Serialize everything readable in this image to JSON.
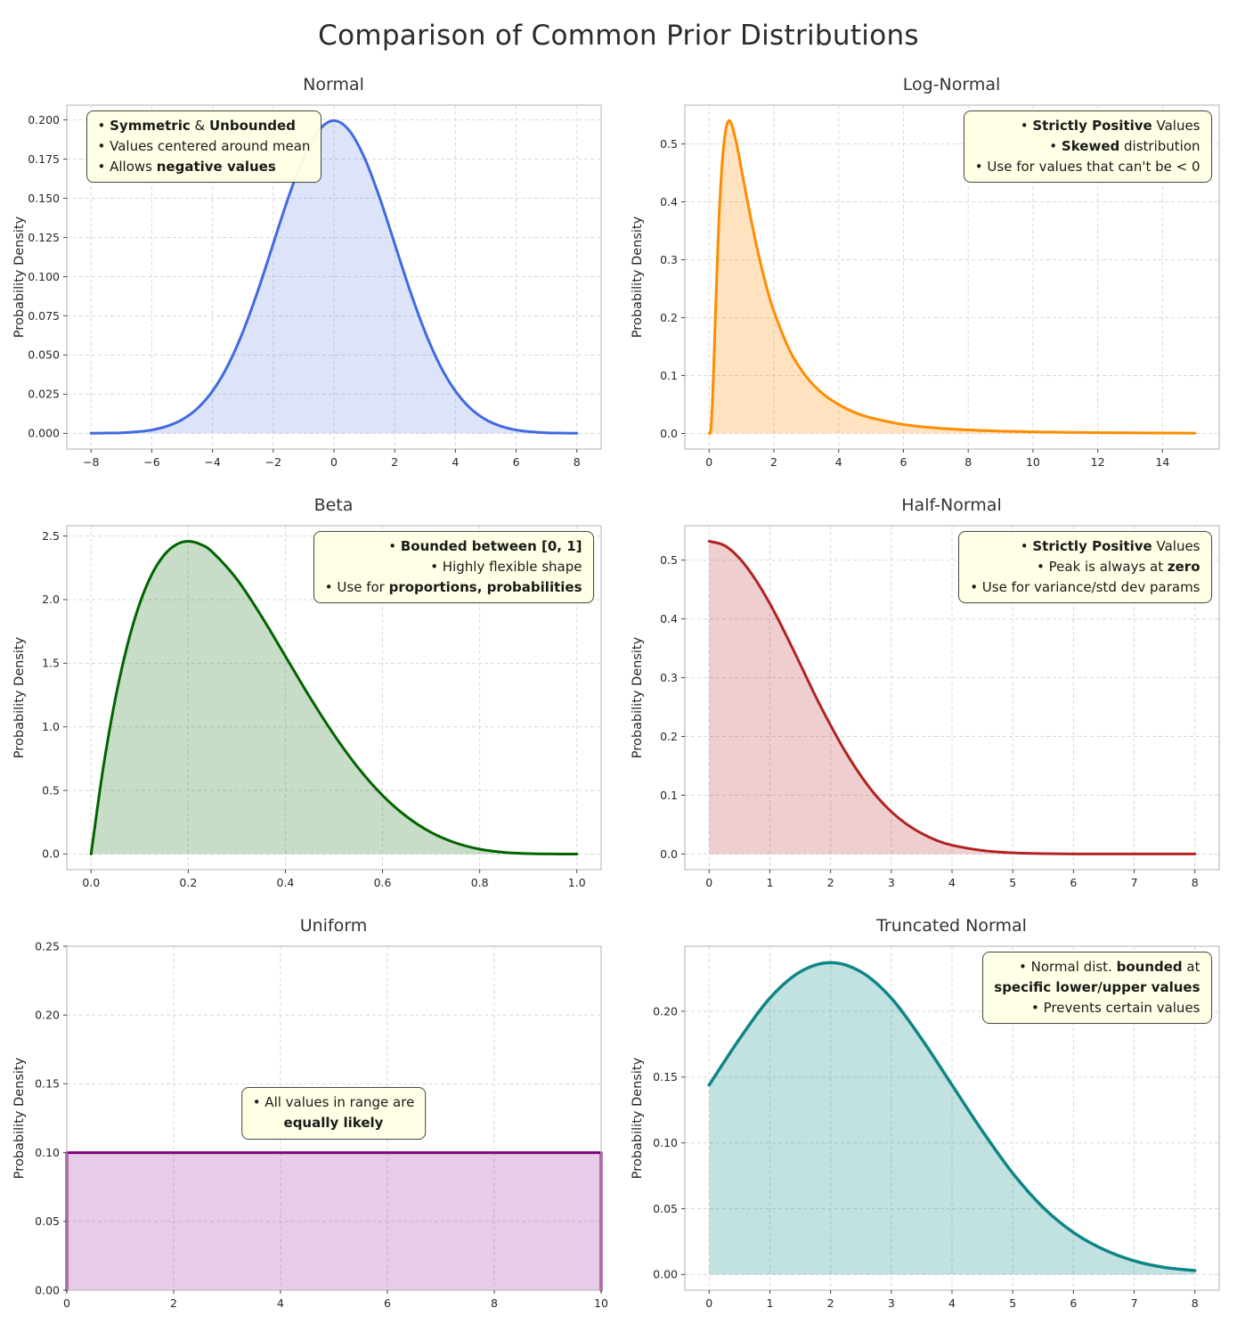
{
  "figure": {
    "title": "Comparison of Common Prior Distributions"
  },
  "chart_data": [
    {
      "type": "area",
      "title": "Normal",
      "ylabel": "Probability Density",
      "color": "#4169e1",
      "fill_opacity": 0.18,
      "lw": 3,
      "smooth": true,
      "xlim": [
        -8.8,
        8.8
      ],
      "ylim": [
        -0.01,
        0.2094
      ],
      "xticks": {
        "values": [
          -8,
          -6,
          -4,
          -2,
          0,
          2,
          4,
          6,
          8
        ],
        "labels": [
          "−8",
          "−6",
          "−4",
          "−2",
          "0",
          "2",
          "4",
          "6",
          "8"
        ]
      },
      "yticks": {
        "values": [
          0,
          0.025,
          0.05,
          0.075,
          0.1,
          0.125,
          0.15,
          0.175,
          0.2
        ],
        "labels": [
          "0.000",
          "0.025",
          "0.050",
          "0.075",
          "0.100",
          "0.125",
          "0.150",
          "0.175",
          "0.200"
        ]
      },
      "points": [
        [
          -8,
          0.0001
        ],
        [
          -7.5,
          0.0002
        ],
        [
          -7,
          0.0004
        ],
        [
          -6.5,
          0.001
        ],
        [
          -6,
          0.0022
        ],
        [
          -5.5,
          0.0046
        ],
        [
          -5,
          0.0088
        ],
        [
          -4.5,
          0.0159
        ],
        [
          -4,
          0.027
        ],
        [
          -3.5,
          0.0431
        ],
        [
          -3,
          0.0648
        ],
        [
          -2.5,
          0.0913
        ],
        [
          -2,
          0.121
        ],
        [
          -1.5,
          0.1506
        ],
        [
          -1,
          0.176
        ],
        [
          -0.5,
          0.1933
        ],
        [
          0,
          0.1995
        ],
        [
          0.5,
          0.1933
        ],
        [
          1,
          0.176
        ],
        [
          1.5,
          0.1506
        ],
        [
          2,
          0.121
        ],
        [
          2.5,
          0.0913
        ],
        [
          3,
          0.0648
        ],
        [
          3.5,
          0.0431
        ],
        [
          4,
          0.027
        ],
        [
          4.5,
          0.0159
        ],
        [
          5,
          0.0088
        ],
        [
          5.5,
          0.0046
        ],
        [
          6,
          0.0022
        ],
        [
          6.5,
          0.001
        ],
        [
          7,
          0.0004
        ],
        [
          7.5,
          0.0002
        ],
        [
          8,
          0.0001
        ]
      ],
      "annotation": {
        "anchor": "top-left",
        "align": "left",
        "lines": [
          [
            [
              "• ",
              0
            ],
            [
              "Symmetric",
              1
            ],
            [
              " & ",
              0
            ],
            [
              "Unbounded",
              1
            ]
          ],
          [
            [
              "• Values centered around mean",
              0
            ]
          ],
          [
            [
              "• Allows ",
              0
            ],
            [
              "negative values",
              1
            ]
          ]
        ]
      }
    },
    {
      "type": "area",
      "title": "Log-Normal",
      "ylabel": "Probability Density",
      "color": "#ff8c00",
      "fill_opacity": 0.25,
      "lw": 3,
      "smooth": true,
      "xlim": [
        -0.75,
        15.75
      ],
      "ylim": [
        -0.027,
        0.567
      ],
      "xticks": {
        "values": [
          0,
          2,
          4,
          6,
          8,
          10,
          12,
          14
        ],
        "labels": [
          "0",
          "2",
          "4",
          "6",
          "8",
          "10",
          "12",
          "14"
        ]
      },
      "yticks": {
        "values": [
          0,
          0.1,
          0.2,
          0.3,
          0.4,
          0.5
        ],
        "labels": [
          "0.0",
          "0.1",
          "0.2",
          "0.3",
          "0.4",
          "0.5"
        ]
      },
      "points": [
        [
          0,
          0
        ],
        [
          0.05,
          0.006
        ],
        [
          0.1,
          0.052
        ],
        [
          0.15,
          0.129
        ],
        [
          0.2,
          0.215
        ],
        [
          0.3,
          0.365
        ],
        [
          0.4,
          0.465
        ],
        [
          0.5,
          0.52
        ],
        [
          0.6,
          0.54
        ],
        [
          0.7,
          0.533
        ],
        [
          0.8,
          0.512
        ],
        [
          0.9,
          0.486
        ],
        [
          1,
          0.455
        ],
        [
          1.25,
          0.382
        ],
        [
          1.5,
          0.315
        ],
        [
          1.75,
          0.258
        ],
        [
          2,
          0.211
        ],
        [
          2.5,
          0.142
        ],
        [
          3,
          0.098
        ],
        [
          3.5,
          0.069
        ],
        [
          4,
          0.05
        ],
        [
          4.5,
          0.036
        ],
        [
          5,
          0.027
        ],
        [
          6,
          0.0155
        ],
        [
          7,
          0.0095
        ],
        [
          8,
          0.006
        ],
        [
          9,
          0.004
        ],
        [
          10,
          0.0027
        ],
        [
          11,
          0.0019
        ],
        [
          12,
          0.0013
        ],
        [
          13,
          0.001
        ],
        [
          14,
          0.0007
        ],
        [
          15,
          0.0005
        ]
      ],
      "annotation": {
        "anchor": "top-right",
        "align": "right",
        "lines": [
          [
            [
              "• ",
              0
            ],
            [
              "Strictly Positive",
              1
            ],
            [
              " Values",
              0
            ]
          ],
          [
            [
              "• ",
              0
            ],
            [
              "Skewed",
              1
            ],
            [
              " distribution",
              0
            ]
          ],
          [
            [
              "• Use for values that can't be < 0",
              0
            ]
          ]
        ]
      }
    },
    {
      "type": "area",
      "title": "Beta",
      "ylabel": "Probability Density",
      "color": "#006400",
      "fill_opacity": 0.22,
      "lw": 3,
      "smooth": true,
      "xlim": [
        -0.05,
        1.05
      ],
      "ylim": [
        -0.123,
        2.581
      ],
      "xticks": {
        "values": [
          0,
          0.2,
          0.4,
          0.6,
          0.8,
          1
        ],
        "labels": [
          "0.0",
          "0.2",
          "0.4",
          "0.6",
          "0.8",
          "1.0"
        ]
      },
      "yticks": {
        "values": [
          0,
          0.5,
          1,
          1.5,
          2,
          2.5
        ],
        "labels": [
          "0.0",
          "0.5",
          "1.0",
          "1.5",
          "2.0",
          "2.5"
        ]
      },
      "points": [
        [
          0,
          0
        ],
        [
          0.025,
          0.678
        ],
        [
          0.05,
          1.222
        ],
        [
          0.075,
          1.647
        ],
        [
          0.1,
          1.968
        ],
        [
          0.125,
          2.198
        ],
        [
          0.15,
          2.349
        ],
        [
          0.175,
          2.432
        ],
        [
          0.2,
          2.458
        ],
        [
          0.225,
          2.435
        ],
        [
          0.25,
          2.373
        ],
        [
          0.3,
          2.161
        ],
        [
          0.35,
          1.874
        ],
        [
          0.4,
          1.555
        ],
        [
          0.45,
          1.235
        ],
        [
          0.5,
          0.938
        ],
        [
          0.55,
          0.677
        ],
        [
          0.6,
          0.461
        ],
        [
          0.65,
          0.293
        ],
        [
          0.7,
          0.17
        ],
        [
          0.75,
          0.088
        ],
        [
          0.8,
          0.038
        ],
        [
          0.85,
          0.013
        ],
        [
          0.9,
          0.003
        ],
        [
          0.95,
          0.0002
        ],
        [
          1,
          0
        ]
      ],
      "annotation": {
        "anchor": "top-right",
        "align": "right",
        "lines": [
          [
            [
              "• ",
              0
            ],
            [
              "Bounded between [0, 1]",
              1
            ]
          ],
          [
            [
              "• Highly flexible shape",
              0
            ]
          ],
          [
            [
              "• Use for ",
              0
            ],
            [
              "proportions, probabilities",
              1
            ]
          ]
        ]
      }
    },
    {
      "type": "area",
      "title": "Half-Normal",
      "ylabel": "Probability Density",
      "color": "#b22222",
      "fill_opacity": 0.22,
      "lw": 3,
      "smooth": true,
      "xlim": [
        -0.4,
        8.4
      ],
      "ylim": [
        -0.0266,
        0.5585
      ],
      "xticks": {
        "values": [
          0,
          1,
          2,
          3,
          4,
          5,
          6,
          7,
          8
        ],
        "labels": [
          "0",
          "1",
          "2",
          "3",
          "4",
          "5",
          "6",
          "7",
          "8"
        ]
      },
      "yticks": {
        "values": [
          0,
          0.1,
          0.2,
          0.3,
          0.4,
          0.5
        ],
        "labels": [
          "0.0",
          "0.1",
          "0.2",
          "0.3",
          "0.4",
          "0.5"
        ]
      },
      "points": [
        [
          0,
          0.532
        ],
        [
          0.25,
          0.525
        ],
        [
          0.5,
          0.503
        ],
        [
          0.75,
          0.469
        ],
        [
          1,
          0.426
        ],
        [
          1.25,
          0.376
        ],
        [
          1.5,
          0.323
        ],
        [
          1.75,
          0.269
        ],
        [
          2,
          0.219
        ],
        [
          2.25,
          0.173
        ],
        [
          2.5,
          0.133
        ],
        [
          2.75,
          0.099
        ],
        [
          3,
          0.072
        ],
        [
          3.25,
          0.051
        ],
        [
          3.5,
          0.035
        ],
        [
          3.75,
          0.023
        ],
        [
          4,
          0.015
        ],
        [
          4.5,
          0.006
        ],
        [
          5,
          0.002
        ],
        [
          5.5,
          0.0007
        ],
        [
          6,
          0.0002
        ],
        [
          7,
          0.0001
        ],
        [
          8,
          0.0001
        ]
      ],
      "annotation": {
        "anchor": "top-right",
        "align": "right",
        "lines": [
          [
            [
              "• ",
              0
            ],
            [
              "Strictly Positive",
              1
            ],
            [
              " Values",
              0
            ]
          ],
          [
            [
              "• Peak is always at ",
              0
            ],
            [
              "zero",
              1
            ]
          ],
          [
            [
              "• Use for variance/std dev params",
              0
            ]
          ]
        ]
      }
    },
    {
      "type": "area",
      "title": "Uniform",
      "ylabel": "Probability Density",
      "color": "#800080",
      "fill_opacity": 0.2,
      "lw": 3,
      "smooth": false,
      "xlim": [
        0,
        10
      ],
      "ylim": [
        0,
        0.25
      ],
      "xticks": {
        "values": [
          0,
          2,
          4,
          6,
          8,
          10
        ],
        "labels": [
          "0",
          "2",
          "4",
          "6",
          "8",
          "10"
        ]
      },
      "yticks": {
        "values": [
          0,
          0.05,
          0.1,
          0.15,
          0.2,
          0.25
        ],
        "labels": [
          "0.00",
          "0.05",
          "0.10",
          "0.15",
          "0.20",
          "0.25"
        ]
      },
      "points": [
        [
          0,
          0
        ],
        [
          0,
          0.1
        ],
        [
          10,
          0.1
        ],
        [
          10,
          0
        ]
      ],
      "annotation": {
        "anchor": "center",
        "align": "center",
        "lines": [
          [
            [
              "• All values in range are",
              0
            ]
          ],
          [
            [
              "equally likely",
              1
            ]
          ]
        ]
      }
    },
    {
      "type": "area",
      "title": "Truncated Normal",
      "ylabel": "Probability Density",
      "color": "#0d8686",
      "fill_opacity": 0.25,
      "lw": 3.5,
      "smooth": true,
      "xlim": [
        -0.4,
        8.4
      ],
      "ylim": [
        -0.0119,
        0.2494
      ],
      "xticks": {
        "values": [
          0,
          1,
          2,
          3,
          4,
          5,
          6,
          7,
          8
        ],
        "labels": [
          "0",
          "1",
          "2",
          "3",
          "4",
          "5",
          "6",
          "7",
          "8"
        ]
      },
      "yticks": {
        "values": [
          0,
          0.05,
          0.1,
          0.15,
          0.2
        ],
        "labels": [
          "0.00",
          "0.05",
          "0.10",
          "0.15",
          "0.20"
        ]
      },
      "points": [
        [
          0,
          0.144
        ],
        [
          0.5,
          0.179
        ],
        [
          1,
          0.21
        ],
        [
          1.5,
          0.23
        ],
        [
          2,
          0.237
        ],
        [
          2.5,
          0.23
        ],
        [
          3,
          0.21
        ],
        [
          3.5,
          0.179
        ],
        [
          4,
          0.144
        ],
        [
          4.5,
          0.109
        ],
        [
          5,
          0.077
        ],
        [
          5.5,
          0.051
        ],
        [
          6,
          0.032
        ],
        [
          6.5,
          0.019
        ],
        [
          7,
          0.0104
        ],
        [
          7.5,
          0.0054
        ],
        [
          8,
          0.003
        ]
      ],
      "annotation": {
        "anchor": "top-right",
        "align": "right",
        "lines": [
          [
            [
              "• Normal dist. ",
              0
            ],
            [
              "bounded",
              1
            ],
            [
              " at",
              0
            ]
          ],
          [
            [
              "specific lower/upper values",
              1
            ]
          ],
          [
            [
              "• Prevents certain values",
              0
            ]
          ]
        ]
      }
    }
  ]
}
